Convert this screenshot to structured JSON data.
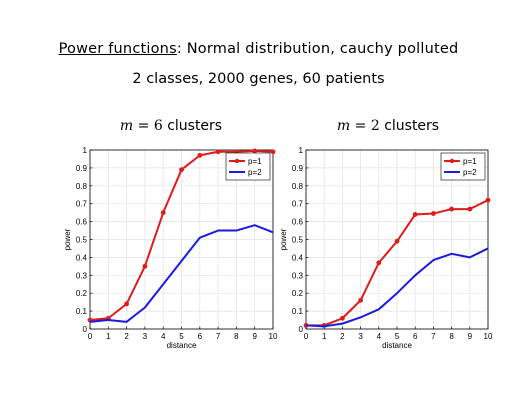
{
  "header": {
    "title_underlined": "Power functions",
    "title_rest": ": Normal distribution, cauchy polluted",
    "subtitle": "2 classes, 2000 genes, 60 patients"
  },
  "panels": [
    {
      "title_var": "m",
      "title_eq": "= 6",
      "title_suffix": "clusters"
    },
    {
      "title_var": "m",
      "title_eq": "= 2",
      "title_suffix": "clusters"
    }
  ],
  "colors": {
    "p1": "#e01b1b",
    "p2": "#1a1ae0"
  },
  "chart_data": [
    {
      "type": "line",
      "title": "m = 6 clusters",
      "xlabel": "distance",
      "ylabel": "power",
      "xlim": [
        0,
        10
      ],
      "ylim": [
        0,
        1
      ],
      "xticks": [
        "0",
        "1",
        "2",
        "3",
        "4",
        "5",
        "6",
        "7",
        "8",
        "9",
        "10"
      ],
      "yticks": [
        "0",
        "0.1",
        "0.2",
        "0.3",
        "0.4",
        "0.5",
        "0.6",
        "0.7",
        "0.8",
        "0.9",
        "1"
      ],
      "grid": true,
      "legend_position": "top-right",
      "x": [
        0,
        1,
        2,
        3,
        4,
        5,
        6,
        7,
        8,
        9,
        10
      ],
      "series": [
        {
          "name": "p=1",
          "values": [
            0.05,
            0.06,
            0.14,
            0.35,
            0.65,
            0.89,
            0.97,
            0.99,
            0.99,
            0.995,
            0.99
          ]
        },
        {
          "name": "p=2",
          "values": [
            0.04,
            0.05,
            0.04,
            0.12,
            0.25,
            0.38,
            0.51,
            0.55,
            0.55,
            0.58,
            0.54
          ]
        }
      ]
    },
    {
      "type": "line",
      "title": "m = 2 clusters",
      "xlabel": "distance",
      "ylabel": "power",
      "xlim": [
        0,
        10
      ],
      "ylim": [
        0,
        1
      ],
      "xticks": [
        "0",
        "1",
        "2",
        "3",
        "4",
        "5",
        "6",
        "7",
        "8",
        "9",
        "10"
      ],
      "yticks": [
        "0",
        "0.1",
        "0.2",
        "0.3",
        "0.4",
        "0.5",
        "0.6",
        "0.7",
        "0.8",
        "0.9",
        "1"
      ],
      "grid": true,
      "legend_position": "top-right",
      "x": [
        0,
        1,
        2,
        3,
        4,
        5,
        6,
        7,
        8,
        9,
        10
      ],
      "series": [
        {
          "name": "p=1",
          "values": [
            0.02,
            0.02,
            0.06,
            0.16,
            0.37,
            0.49,
            0.64,
            0.645,
            0.67,
            0.67,
            0.72
          ]
        },
        {
          "name": "p=2",
          "values": [
            0.02,
            0.015,
            0.03,
            0.065,
            0.11,
            0.2,
            0.3,
            0.385,
            0.42,
            0.4,
            0.45
          ]
        }
      ]
    }
  ]
}
